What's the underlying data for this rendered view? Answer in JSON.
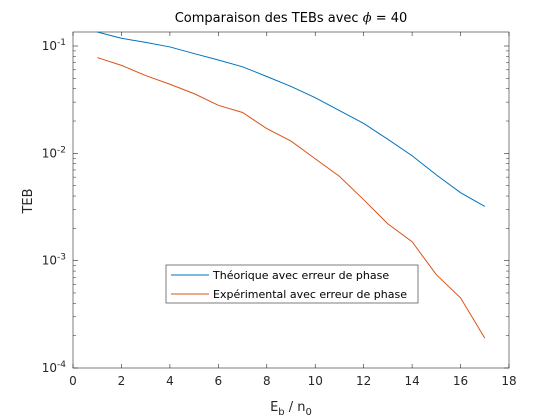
{
  "chart_data": {
    "type": "line",
    "title_prefix": "Comparaison des TEBs avec ",
    "title_symbol": "ϕ",
    "title_suffix": " = 40",
    "xlabel_main": "E",
    "xlabel_sub1": "b",
    "xlabel_mid": " / n",
    "xlabel_sub2": "0",
    "ylabel": "TEB",
    "xlim": [
      0,
      18
    ],
    "ylim": [
      0.0001,
      0.15
    ],
    "yscale": "log",
    "grid": false,
    "legend_position": "bottom-center",
    "x_ticks": [
      0,
      2,
      4,
      6,
      8,
      10,
      12,
      14,
      16,
      18
    ],
    "y_ticks": [
      {
        "value": 0.1,
        "mant": "10",
        "exp": "-1"
      },
      {
        "value": 0.01,
        "mant": "10",
        "exp": "-2"
      },
      {
        "value": 0.001,
        "mant": "10",
        "exp": "-3"
      },
      {
        "value": 0.0001,
        "mant": "10",
        "exp": "-4"
      }
    ],
    "series": [
      {
        "name": "Théorique avec erreur de phase",
        "color": "#0072BD",
        "x": [
          1,
          2,
          3,
          4,
          5,
          6,
          7,
          8,
          9,
          10,
          11,
          12,
          13,
          14,
          15,
          16,
          17
        ],
        "y": [
          0.135,
          0.118,
          0.108,
          0.098,
          0.085,
          0.074,
          0.064,
          0.052,
          0.042,
          0.033,
          0.025,
          0.019,
          0.0135,
          0.0095,
          0.0063,
          0.0043,
          0.0032
        ]
      },
      {
        "name": "Expérimental avec erreur de phase",
        "color": "#D95319",
        "x": [
          1,
          2,
          3,
          4,
          5,
          6,
          7,
          8,
          9,
          10,
          11,
          12,
          13,
          14,
          15,
          16,
          17
        ],
        "y": [
          0.078,
          0.066,
          0.053,
          0.044,
          0.036,
          0.028,
          0.024,
          0.017,
          0.013,
          0.0089,
          0.0061,
          0.0037,
          0.0022,
          0.0015,
          0.00074,
          0.00045,
          0.00019
        ]
      }
    ]
  }
}
